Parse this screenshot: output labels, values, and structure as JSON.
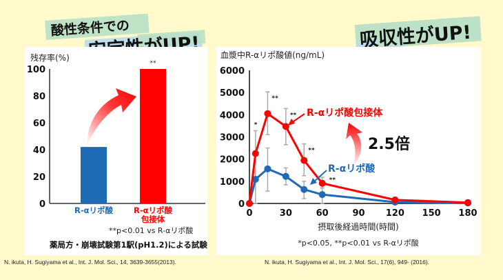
{
  "headlines": {
    "left_line1": "酸性条件での",
    "left_line2": "安定性がUP!",
    "right": "吸収性がUP!"
  },
  "colors": {
    "background": "#fff9cc",
    "band_green": "#b9dfc6",
    "band_blue": "#b8dcef",
    "red": "#ff0000",
    "blue": "#1f6ab5",
    "errorbar": "#aaaaaa"
  },
  "chart_data": [
    {
      "type": "bar",
      "title": "",
      "ylabel": "残存率(%)",
      "xlabel": "",
      "ylim": [
        0,
        100
      ],
      "yticks": [
        0,
        20,
        40,
        60,
        80,
        100
      ],
      "categories": [
        "R-αリポ酸",
        "R-αリポ酸\n包接体"
      ],
      "category_lines": [
        [
          "R-αリポ酸"
        ],
        [
          "R-αリポ酸",
          "包接体"
        ]
      ],
      "values": [
        42,
        100
      ],
      "bar_colors": [
        "#1f6ab5",
        "#ff0000"
      ],
      "annotations": [
        "",
        "**"
      ],
      "footnote": "**p<0.01 vs R-αリポ酸",
      "method_note": "薬局方・崩壊試験第1駅(pH1.2)による試験",
      "citation": "N. ikuta, H. Sugiyama et al., Int. J. Mol. Sci., 14, 3639-3655(2013)."
    },
    {
      "type": "line",
      "title": "",
      "ylabel": "血漿中R-αリポ酸値(ng/mL)",
      "xlabel": "摂取後経過時間(時間)",
      "xlim": [
        0,
        180
      ],
      "ylim": [
        0,
        6000
      ],
      "xticks": [
        0,
        30,
        60,
        90,
        120,
        150,
        180
      ],
      "yticks": [
        0,
        1000,
        2000,
        3000,
        4000,
        5000,
        6000
      ],
      "x": [
        0,
        5,
        15,
        30,
        45,
        60,
        120,
        180
      ],
      "series": [
        {
          "name": "R-αリポ酸包接体",
          "color": "#ff0000",
          "values": [
            0,
            2250,
            4050,
            3470,
            1940,
            910,
            160,
            40
          ],
          "error_low": [
            0,
            1200,
            3100,
            2650,
            1250,
            700,
            60,
            0
          ],
          "error_high": [
            0,
            3280,
            5030,
            4280,
            2690,
            1180,
            260,
            80
          ],
          "significance": [
            "",
            "*",
            "**",
            "**",
            "**",
            "**",
            "",
            ""
          ]
        },
        {
          "name": "R-αリポ酸",
          "color": "#1f6ab5",
          "values": [
            0,
            1090,
            1560,
            1220,
            630,
            400,
            60,
            20
          ],
          "error_low": [
            0,
            0,
            560,
            840,
            220,
            0,
            0,
            0
          ],
          "error_high": [
            0,
            1090,
            2500,
            1600,
            1000,
            700,
            120,
            40
          ]
        }
      ],
      "ratio_label": "2.5倍",
      "footnote": "*p<0.05, **p<0.01 vs R-αリポ酸",
      "citation": "N. ikuta, H. Sugiyama et al., Int. J. Mol. Sci., 17(6), 949- (2016)."
    }
  ]
}
